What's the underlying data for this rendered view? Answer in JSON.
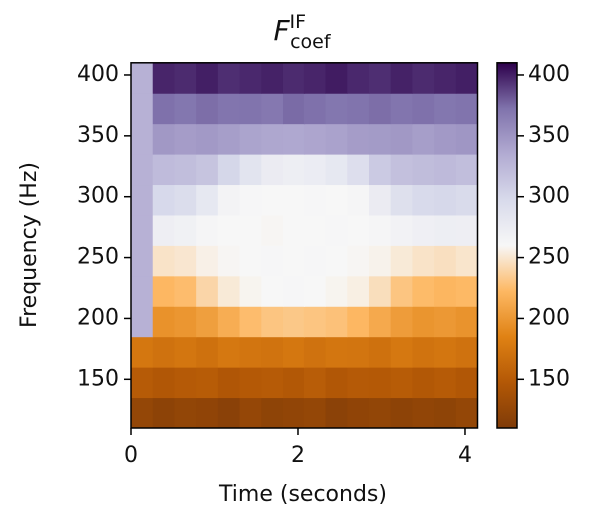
{
  "chart_data": {
    "type": "heatmap",
    "title": {
      "main": "F",
      "sup": "IF",
      "sub": "coef"
    },
    "x_label": "Time (seconds)",
    "y_label": "Frequency (Hz)",
    "x": [
      0.13,
      0.39,
      0.65,
      0.91,
      1.17,
      1.43,
      1.69,
      1.95,
      2.2,
      2.46,
      2.72,
      2.98,
      3.24,
      3.5,
      3.76,
      4.02
    ],
    "y": [
      122.5,
      147.5,
      172.5,
      197.5,
      222.5,
      247.5,
      272.5,
      297.5,
      322.5,
      347.5,
      372.5,
      397.5
    ],
    "values": [
      [
        125,
        120,
        124,
        122,
        118,
        126,
        121,
        123,
        125,
        119,
        122,
        124,
        120,
        123,
        121,
        125
      ],
      [
        150,
        146,
        149,
        151,
        145,
        148,
        150,
        147,
        152,
        146,
        149,
        148,
        151,
        147,
        150,
        146
      ],
      [
        175,
        171,
        174,
        170,
        176,
        173,
        172,
        175,
        171,
        174,
        173,
        170,
        176,
        172,
        174,
        171
      ],
      [
        330,
        196,
        199,
        205,
        215,
        225,
        230,
        232,
        230,
        228,
        222,
        212,
        203,
        198,
        200,
        197
      ],
      [
        330,
        222,
        225,
        240,
        252,
        258,
        260,
        261,
        260,
        258,
        255,
        245,
        230,
        224,
        221,
        223
      ],
      [
        330,
        248,
        250,
        256,
        259,
        260,
        261,
        260,
        261,
        260,
        259,
        257,
        252,
        248,
        246,
        249
      ],
      [
        330,
        271,
        268,
        263,
        260,
        260,
        259,
        260,
        260,
        261,
        260,
        262,
        266,
        270,
        272,
        271
      ],
      [
        330,
        298,
        294,
        280,
        265,
        261,
        260,
        260,
        261,
        260,
        263,
        275,
        290,
        297,
        299,
        296
      ],
      [
        330,
        322,
        320,
        315,
        300,
        285,
        275,
        272,
        274,
        280,
        292,
        310,
        318,
        321,
        323,
        320
      ],
      [
        330,
        348,
        345,
        347,
        344,
        340,
        338,
        337,
        339,
        341,
        345,
        346,
        348,
        344,
        347,
        349
      ],
      [
        330,
        373,
        370,
        374,
        371,
        372,
        369,
        375,
        373,
        370,
        372,
        374,
        371,
        373,
        370,
        372
      ],
      [
        330,
        398,
        396,
        400,
        395,
        397,
        399,
        396,
        398,
        401,
        397,
        395,
        399,
        396,
        398,
        400
      ]
    ],
    "xlim": [
      0,
      4.15
    ],
    "ylim": [
      110,
      410
    ],
    "xticks": [
      0,
      2,
      4
    ],
    "yticks": [
      150,
      200,
      250,
      300,
      350,
      400
    ],
    "clim": [
      110,
      410
    ],
    "cticks": [
      150,
      200,
      250,
      300,
      350,
      400
    ],
    "colormap": [
      "#7f3b08",
      "#b35806",
      "#e08214",
      "#fdb863",
      "#f7f7f7",
      "#d8daeb",
      "#b2abd2",
      "#8073ac",
      "#2d004b"
    ]
  }
}
